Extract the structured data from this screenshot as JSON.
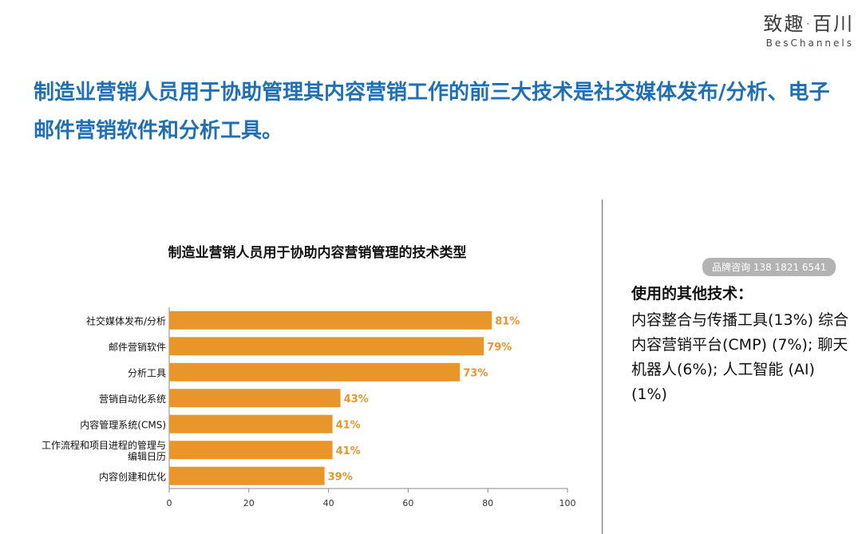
{
  "logo": {
    "cn": "致趣·百川",
    "en": "BesChannels"
  },
  "headline": "制造业营销人员用于协助管理其内容营销工作的前三大技术是社交媒体发布/分析、电子邮件营销软件和分析工具。",
  "watermark": "品牌咨询 138 1821 6541",
  "side": {
    "title": "使用的其他技术：",
    "body": "内容整合与传播工具(13%) 综合内容营销平台(CMP) (7%); 聊天机器人(6%); 人工智能 (AI) (1%)"
  },
  "colors": {
    "bar": "#e8962a",
    "label": "#e8962a",
    "headline": "#1f6fb4"
  },
  "chart_data": {
    "type": "bar",
    "orientation": "horizontal",
    "title": "制造业营销人员用于协助内容营销管理的技术类型",
    "categories": [
      [
        "社交媒体发布/分析"
      ],
      [
        "邮件营销软件"
      ],
      [
        "分析工具"
      ],
      [
        "营销自动化系统"
      ],
      [
        "内容管理系统(CMS)"
      ],
      [
        "工作流程和项目进程的管理与",
        "编辑日历"
      ],
      [
        "内容创建和优化"
      ]
    ],
    "values": [
      81,
      79,
      73,
      43,
      41,
      41,
      39
    ],
    "value_labels": [
      "81%",
      "79%",
      "73%",
      "43%",
      "41%",
      "41%",
      "39%"
    ],
    "xlim": [
      0,
      100
    ],
    "xticks": [
      "0",
      "20",
      "40",
      "60",
      "80",
      "100"
    ],
    "grid": false
  }
}
